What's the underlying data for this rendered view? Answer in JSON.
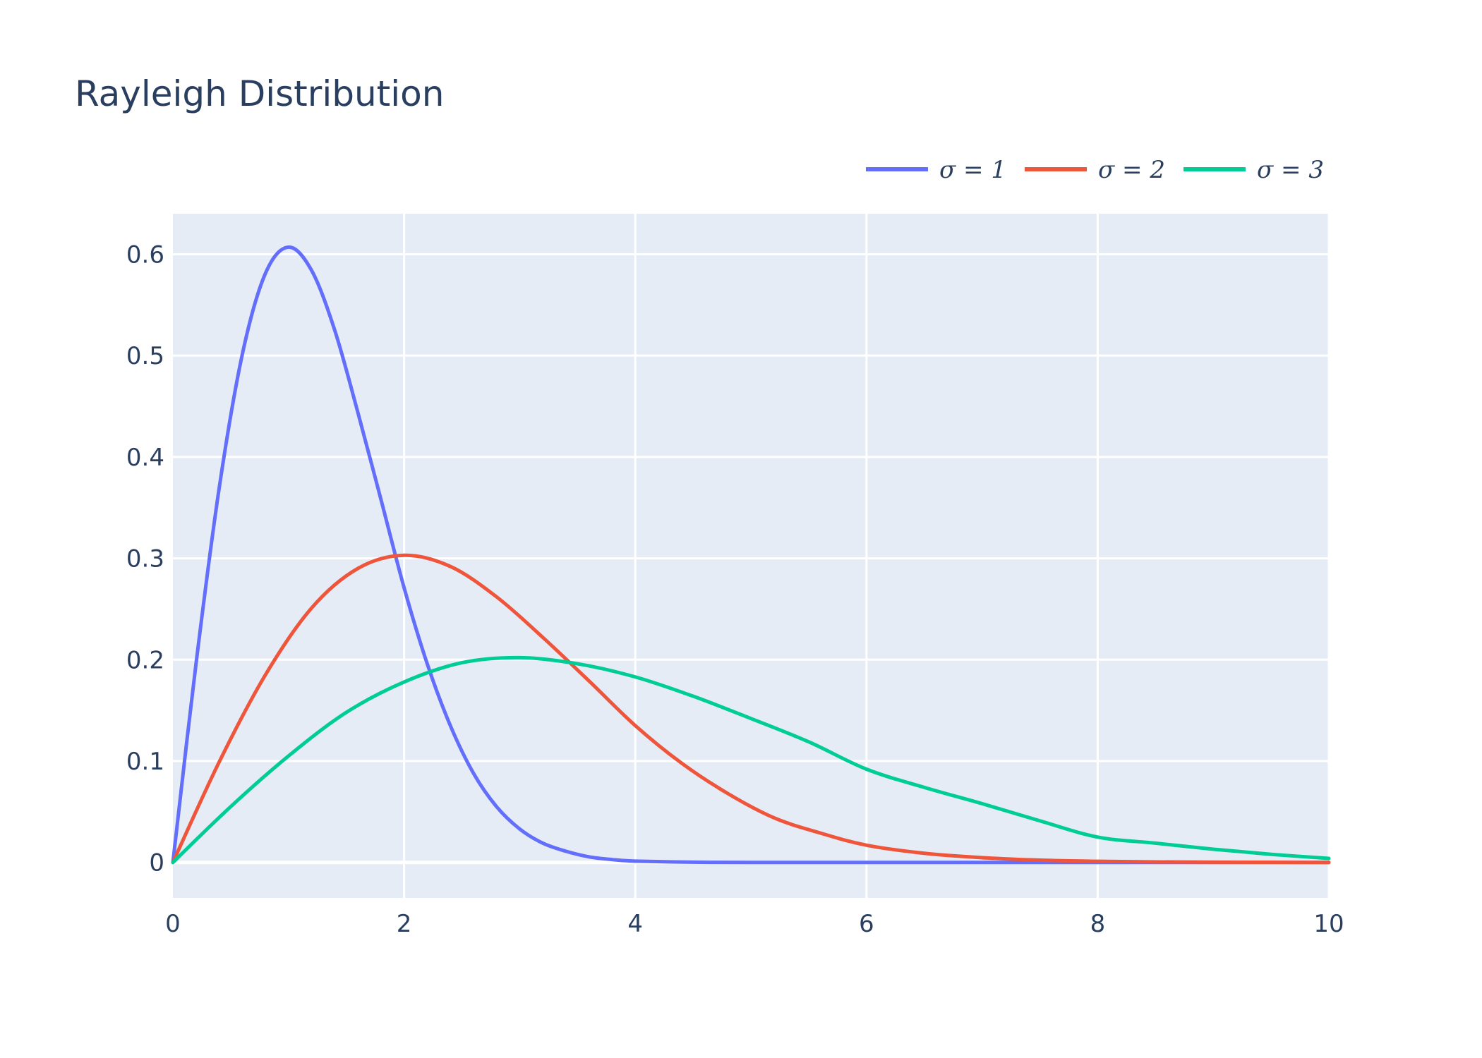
{
  "chart_data": {
    "type": "line",
    "title": "Rayleigh Distribution",
    "xlabel": "",
    "ylabel": "",
    "xlim": [
      0,
      10
    ],
    "ylim": [
      -0.035,
      0.64
    ],
    "x_ticks": [
      0,
      2,
      4,
      6,
      8,
      10
    ],
    "x_tick_labels": [
      "0",
      "2",
      "4",
      "6",
      "8",
      "10"
    ],
    "y_ticks": [
      0,
      0.1,
      0.2,
      0.3,
      0.4,
      0.5,
      0.6
    ],
    "y_tick_labels": [
      "0",
      "0.1",
      "0.2",
      "0.3",
      "0.4",
      "0.5",
      "0.6"
    ],
    "grid": true,
    "legend_position": "top-right",
    "legend_orientation": "horizontal",
    "plot_background": "#e5ecf6",
    "series": [
      {
        "name": "σ = 1",
        "sigma": 1,
        "color": "#636efa",
        "x": [
          0,
          0.2,
          0.4,
          0.6,
          0.8,
          1.0,
          1.2,
          1.4,
          1.6,
          1.8,
          2.0,
          2.2,
          2.4,
          2.6,
          2.8,
          3.0,
          3.2,
          3.4,
          3.6,
          3.8,
          4.0,
          4.5,
          5.0,
          6.0,
          7.0,
          8.0,
          9.0,
          10.0
        ],
        "values": [
          0,
          0.196,
          0.369,
          0.501,
          0.581,
          0.607,
          0.584,
          0.525,
          0.444,
          0.358,
          0.271,
          0.196,
          0.135,
          0.088,
          0.055,
          0.033,
          0.019,
          0.011,
          0.0055,
          0.0028,
          0.0013,
          0.0002,
          0,
          0,
          0,
          0,
          0,
          0
        ]
      },
      {
        "name": "σ = 2",
        "sigma": 2,
        "color": "#ef553b",
        "x": [
          0,
          0.4,
          0.8,
          1.2,
          1.6,
          2.0,
          2.4,
          2.8,
          3.2,
          3.6,
          4.0,
          4.4,
          4.8,
          5.2,
          5.6,
          6.0,
          6.5,
          7.0,
          7.5,
          8.0,
          8.5,
          9.0,
          9.5,
          10.0
        ],
        "values": [
          0,
          0.099,
          0.185,
          0.251,
          0.29,
          0.303,
          0.292,
          0.262,
          0.222,
          0.179,
          0.135,
          0.098,
          0.068,
          0.044,
          0.029,
          0.017,
          0.009,
          0.0047,
          0.0022,
          0.0011,
          0.0005,
          0.0002,
          0.0001,
          0
        ]
      },
      {
        "name": "σ = 3",
        "sigma": 3,
        "color": "#00cc96",
        "x": [
          0,
          0.5,
          1.0,
          1.5,
          2.0,
          2.5,
          3.0,
          3.5,
          4.0,
          4.5,
          5.0,
          5.5,
          6.0,
          6.5,
          7.0,
          7.5,
          8.0,
          8.5,
          9.0,
          9.5,
          10.0
        ],
        "values": [
          0,
          0.055,
          0.105,
          0.148,
          0.178,
          0.197,
          0.202,
          0.196,
          0.183,
          0.164,
          0.142,
          0.119,
          0.092,
          0.074,
          0.058,
          0.041,
          0.025,
          0.019,
          0.013,
          0.008,
          0.004
        ]
      }
    ]
  }
}
